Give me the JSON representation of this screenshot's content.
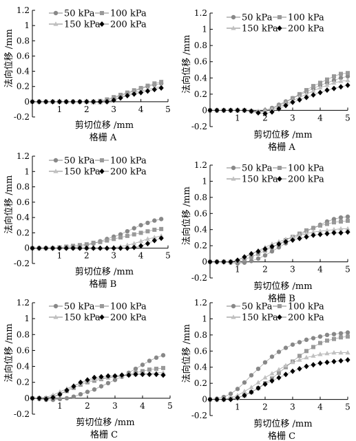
{
  "colors": {
    "s50": "#888888",
    "s100": "#999999",
    "s150": "#c0c0c0",
    "s200": "#000000",
    "fit": "#555555",
    "axis": "#000000"
  },
  "chart_data": [
    {
      "type": "scatter",
      "panel_label": "格栅 A",
      "xlabel": "剪切位移 /mm",
      "ylabel": "法向位移 /mm",
      "xlim": [
        0,
        5
      ],
      "ylim": [
        -0.2,
        1.2
      ],
      "x_ticks": [
        1,
        2,
        3,
        4,
        5
      ],
      "y_ticks": [
        -0.2,
        0,
        0.2,
        0.4,
        0.6,
        0.8,
        1.0,
        1.2
      ],
      "legend_position": "top-left",
      "x": [
        0,
        0.25,
        0.5,
        0.75,
        1.0,
        1.25,
        1.5,
        1.75,
        2.0,
        2.25,
        2.5,
        2.75,
        3.0,
        3.25,
        3.5,
        3.75,
        4.0,
        4.25,
        4.5,
        4.75
      ],
      "series": [
        {
          "name": "50 kPa",
          "marker": "circle",
          "values": [
            0,
            0,
            0,
            0,
            0,
            0,
            0,
            0,
            0,
            0,
            0.0,
            0.02,
            0.05,
            0.08,
            0.11,
            0.14,
            0.17,
            0.2,
            0.22,
            0.24
          ]
        },
        {
          "name": "100 kPa",
          "marker": "square",
          "values": [
            0,
            0,
            0,
            0,
            0,
            0,
            0,
            0,
            0,
            0,
            0.01,
            0.03,
            0.06,
            0.09,
            0.12,
            0.15,
            0.18,
            0.21,
            0.24,
            0.26
          ]
        },
        {
          "name": "150 kPa",
          "marker": "triangle",
          "values": [
            0,
            0,
            0,
            0,
            0,
            0,
            0,
            0,
            0,
            -0.01,
            -0.01,
            0.0,
            0.03,
            0.06,
            0.09,
            0.12,
            0.14,
            0.16,
            0.18,
            0.2
          ]
        },
        {
          "name": "200 kPa",
          "marker": "diamond",
          "values": [
            0,
            0,
            0,
            0,
            0,
            0,
            0,
            0,
            0,
            0,
            0,
            0.0,
            0.02,
            0.05,
            0.08,
            0.1,
            0.12,
            0.14,
            0.16,
            0.18
          ]
        }
      ]
    },
    {
      "type": "scatter",
      "panel_label": "格栅 A",
      "xlabel": "剪切位移 /mm",
      "ylabel": "法向位移 /mm",
      "xlim": [
        0,
        5
      ],
      "ylim": [
        -0.2,
        1.2
      ],
      "x_ticks": [
        1,
        2,
        3,
        4,
        5
      ],
      "y_ticks": [
        -0.2,
        0,
        0.2,
        0.4,
        0.6,
        0.8,
        1.0,
        1.2
      ],
      "legend_position": "top-left",
      "x": [
        0,
        0.25,
        0.5,
        0.75,
        1.0,
        1.25,
        1.5,
        1.75,
        2.0,
        2.25,
        2.5,
        2.75,
        3.0,
        3.25,
        3.5,
        3.75,
        4.0,
        4.25,
        4.5,
        4.75,
        5.0
      ],
      "series": [
        {
          "name": "50 kPa",
          "marker": "circle",
          "values": [
            0,
            0,
            0,
            0,
            0,
            0,
            -0.01,
            -0.02,
            0.0,
            0.03,
            0.07,
            0.11,
            0.15,
            0.19,
            0.23,
            0.27,
            0.31,
            0.34,
            0.37,
            0.4,
            0.42
          ]
        },
        {
          "name": "100 kPa",
          "marker": "square",
          "values": [
            0,
            0,
            0,
            0,
            0,
            0,
            -0.01,
            -0.02,
            -0.01,
            0.02,
            0.06,
            0.1,
            0.15,
            0.2,
            0.25,
            0.3,
            0.34,
            0.38,
            0.42,
            0.45,
            0.46
          ]
        },
        {
          "name": "150 kPa",
          "marker": "triangle",
          "values": [
            0,
            0,
            0,
            0,
            0,
            0,
            0,
            -0.01,
            -0.01,
            0.01,
            0.04,
            0.08,
            0.12,
            0.16,
            0.2,
            0.24,
            0.28,
            0.31,
            0.34,
            0.36,
            0.37
          ]
        },
        {
          "name": "200 kPa",
          "marker": "diamond",
          "values": [
            0,
            0,
            0,
            0,
            0,
            0,
            -0.01,
            -0.03,
            -0.04,
            -0.02,
            0.02,
            0.06,
            0.1,
            0.13,
            0.16,
            0.19,
            0.22,
            0.25,
            0.27,
            0.29,
            0.31
          ]
        }
      ]
    },
    {
      "type": "scatter",
      "panel_label": "格栅 B",
      "xlabel": "剪切位移 /mm",
      "ylabel": "法向位移 /mm",
      "xlim": [
        0,
        5
      ],
      "ylim": [
        -0.2,
        1.2
      ],
      "x_ticks": [
        1,
        2,
        3,
        4,
        5
      ],
      "y_ticks": [
        -0.2,
        0,
        0.2,
        0.4,
        0.6,
        0.8,
        1.0,
        1.2
      ],
      "legend_position": "top-left",
      "x": [
        0,
        0.25,
        0.5,
        0.75,
        1.0,
        1.25,
        1.5,
        1.75,
        2.0,
        2.25,
        2.5,
        2.75,
        3.0,
        3.25,
        3.5,
        3.75,
        4.0,
        4.25,
        4.5,
        4.75
      ],
      "series": [
        {
          "name": "50 kPa",
          "marker": "circle",
          "values": [
            0,
            0,
            0,
            0,
            0,
            0,
            0.01,
            0.02,
            0.04,
            0.06,
            0.09,
            0.12,
            0.15,
            0.18,
            0.22,
            0.26,
            0.3,
            0.33,
            0.36,
            0.38
          ]
        },
        {
          "name": "100 kPa",
          "marker": "square",
          "values": [
            0,
            0,
            0,
            0,
            0.01,
            0.02,
            0.03,
            0.04,
            0.05,
            0.07,
            0.08,
            0.1,
            0.12,
            0.14,
            0.16,
            0.18,
            0.2,
            0.22,
            0.24,
            0.25
          ]
        },
        {
          "name": "150 kPa",
          "marker": "triangle",
          "values": [
            0,
            0,
            0,
            0,
            0,
            0,
            0,
            0,
            0,
            0,
            0,
            0.0,
            0.01,
            0.02,
            0.04,
            0.06,
            0.09,
            0.12,
            0.14,
            0.16
          ]
        },
        {
          "name": "200 kPa",
          "marker": "diamond",
          "values": [
            0,
            0,
            0,
            0,
            0,
            0,
            0,
            0,
            0,
            0,
            0,
            0,
            0,
            0,
            0,
            0.01,
            0.03,
            0.06,
            0.1,
            0.13
          ]
        }
      ]
    },
    {
      "type": "scatter",
      "panel_label": "格栅 B",
      "xlabel": "剪切位移 /mm",
      "ylabel": "法向位移 /mm",
      "xlim": [
        0,
        5
      ],
      "ylim": [
        -0.2,
        1.2
      ],
      "x_ticks": [
        1,
        2,
        3,
        4,
        5
      ],
      "y_ticks": [
        -0.2,
        0,
        0.2,
        0.4,
        0.6,
        0.8,
        1.0,
        1.2
      ],
      "legend_position": "top-left",
      "x": [
        0,
        0.25,
        0.5,
        0.75,
        1.0,
        1.25,
        1.5,
        1.75,
        2.0,
        2.25,
        2.5,
        2.75,
        3.0,
        3.25,
        3.5,
        3.75,
        4.0,
        4.25,
        4.5,
        4.75,
        5.0
      ],
      "series": [
        {
          "name": "50 kPa",
          "marker": "circle",
          "values": [
            0,
            0,
            0,
            -0.01,
            -0.02,
            -0.01,
            0.01,
            0.04,
            0.08,
            0.13,
            0.18,
            0.23,
            0.28,
            0.33,
            0.38,
            0.42,
            0.46,
            0.5,
            0.53,
            0.55,
            0.56
          ]
        },
        {
          "name": "100 kPa",
          "marker": "square",
          "values": [
            0,
            0,
            0,
            0,
            0.01,
            0.03,
            0.06,
            0.1,
            0.14,
            0.18,
            0.22,
            0.27,
            0.31,
            0.35,
            0.39,
            0.42,
            0.45,
            0.47,
            0.49,
            0.5,
            0.51
          ]
        },
        {
          "name": "150 kPa",
          "marker": "triangle",
          "values": [
            0,
            0,
            0,
            0,
            0.02,
            0.06,
            0.1,
            0.14,
            0.18,
            0.22,
            0.25,
            0.28,
            0.31,
            0.33,
            0.35,
            0.37,
            0.38,
            0.39,
            0.4,
            0.41,
            0.41
          ]
        },
        {
          "name": "200 kPa",
          "marker": "diamond",
          "values": [
            0,
            0,
            0,
            0,
            0.02,
            0.06,
            0.1,
            0.13,
            0.16,
            0.19,
            0.22,
            0.25,
            0.27,
            0.29,
            0.31,
            0.33,
            0.34,
            0.35,
            0.36,
            0.36,
            0.37
          ]
        }
      ]
    },
    {
      "type": "scatter",
      "panel_label": "格栅 C",
      "xlabel": "剪切位移 /mm",
      "ylabel": "法向位移 /mm",
      "xlim": [
        0,
        5
      ],
      "ylim": [
        -0.2,
        1.2
      ],
      "x_ticks": [
        1,
        2,
        3,
        4,
        5
      ],
      "y_ticks": [
        -0.2,
        0,
        0.2,
        0.4,
        0.6,
        0.8,
        1.0,
        1.2
      ],
      "legend_position": "top-left",
      "x": [
        0,
        0.25,
        0.5,
        0.75,
        1.0,
        1.25,
        1.5,
        1.75,
        2.0,
        2.25,
        2.5,
        2.75,
        3.0,
        3.25,
        3.5,
        3.75,
        4.0,
        4.25,
        4.5,
        4.75
      ],
      "series": [
        {
          "name": "50 kPa",
          "marker": "circle",
          "values": [
            0,
            -0.01,
            -0.02,
            -0.02,
            -0.01,
            0.0,
            0.02,
            0.05,
            0.08,
            0.11,
            0.15,
            0.19,
            0.23,
            0.27,
            0.32,
            0.37,
            0.42,
            0.47,
            0.51,
            0.54
          ]
        },
        {
          "name": "100 kPa",
          "marker": "square",
          "values": [
            0,
            0,
            0,
            0.02,
            0.05,
            0.09,
            0.13,
            0.17,
            0.2,
            0.22,
            0.24,
            0.26,
            0.27,
            0.28,
            0.3,
            0.32,
            0.34,
            0.36,
            0.37,
            0.38
          ]
        },
        {
          "name": "150 kPa",
          "marker": "triangle",
          "values": [
            0,
            0,
            0.01,
            0.04,
            0.08,
            0.12,
            0.16,
            0.19,
            0.22,
            0.24,
            0.25,
            0.26,
            0.27,
            0.28,
            0.29,
            0.3,
            0.31,
            0.31,
            0.32,
            0.32
          ]
        },
        {
          "name": "200 kPa",
          "marker": "diamond",
          "values": [
            0,
            0,
            -0.01,
            0.01,
            0.05,
            0.1,
            0.15,
            0.2,
            0.23,
            0.26,
            0.27,
            0.28,
            0.28,
            0.29,
            0.29,
            0.3,
            0.3,
            0.3,
            0.3,
            0.29
          ]
        }
      ]
    },
    {
      "type": "scatter",
      "panel_label": "格栅 C",
      "xlabel": "剪切位移 /mm",
      "ylabel": "法向位移 /mm",
      "xlim": [
        0,
        5
      ],
      "ylim": [
        -0.2,
        1.2
      ],
      "x_ticks": [
        1,
        2,
        3,
        4,
        5
      ],
      "y_ticks": [
        -0.2,
        0,
        0.2,
        0.4,
        0.6,
        0.8,
        1.0,
        1.2
      ],
      "legend_position": "top-left",
      "x": [
        0,
        0.25,
        0.5,
        0.75,
        1.0,
        1.25,
        1.5,
        1.75,
        2.0,
        2.25,
        2.5,
        2.75,
        3.0,
        3.25,
        3.5,
        3.75,
        4.0,
        4.25,
        4.5,
        4.75,
        5.0
      ],
      "series": [
        {
          "name": "50 kPa",
          "marker": "circle",
          "values": [
            0,
            0.01,
            0.03,
            0.07,
            0.13,
            0.21,
            0.3,
            0.38,
            0.46,
            0.53,
            0.59,
            0.64,
            0.68,
            0.71,
            0.74,
            0.76,
            0.78,
            0.8,
            0.81,
            0.82,
            0.83
          ]
        },
        {
          "name": "100 kPa",
          "marker": "square",
          "values": [
            0,
            0,
            0,
            0.01,
            0.02,
            0.05,
            0.09,
            0.14,
            0.2,
            0.26,
            0.33,
            0.4,
            0.47,
            0.54,
            0.6,
            0.65,
            0.7,
            0.73,
            0.75,
            0.77,
            0.78
          ]
        },
        {
          "name": "150 kPa",
          "marker": "triangle",
          "values": [
            0,
            0,
            0,
            0.02,
            0.05,
            0.1,
            0.15,
            0.21,
            0.27,
            0.32,
            0.37,
            0.42,
            0.46,
            0.49,
            0.52,
            0.54,
            0.56,
            0.57,
            0.58,
            0.58,
            0.58
          ]
        },
        {
          "name": "200 kPa",
          "marker": "diamond",
          "values": [
            0,
            0,
            0,
            0,
            0.02,
            0.05,
            0.09,
            0.14,
            0.19,
            0.23,
            0.27,
            0.31,
            0.35,
            0.38,
            0.41,
            0.43,
            0.45,
            0.46,
            0.47,
            0.48,
            0.49
          ]
        }
      ]
    }
  ]
}
